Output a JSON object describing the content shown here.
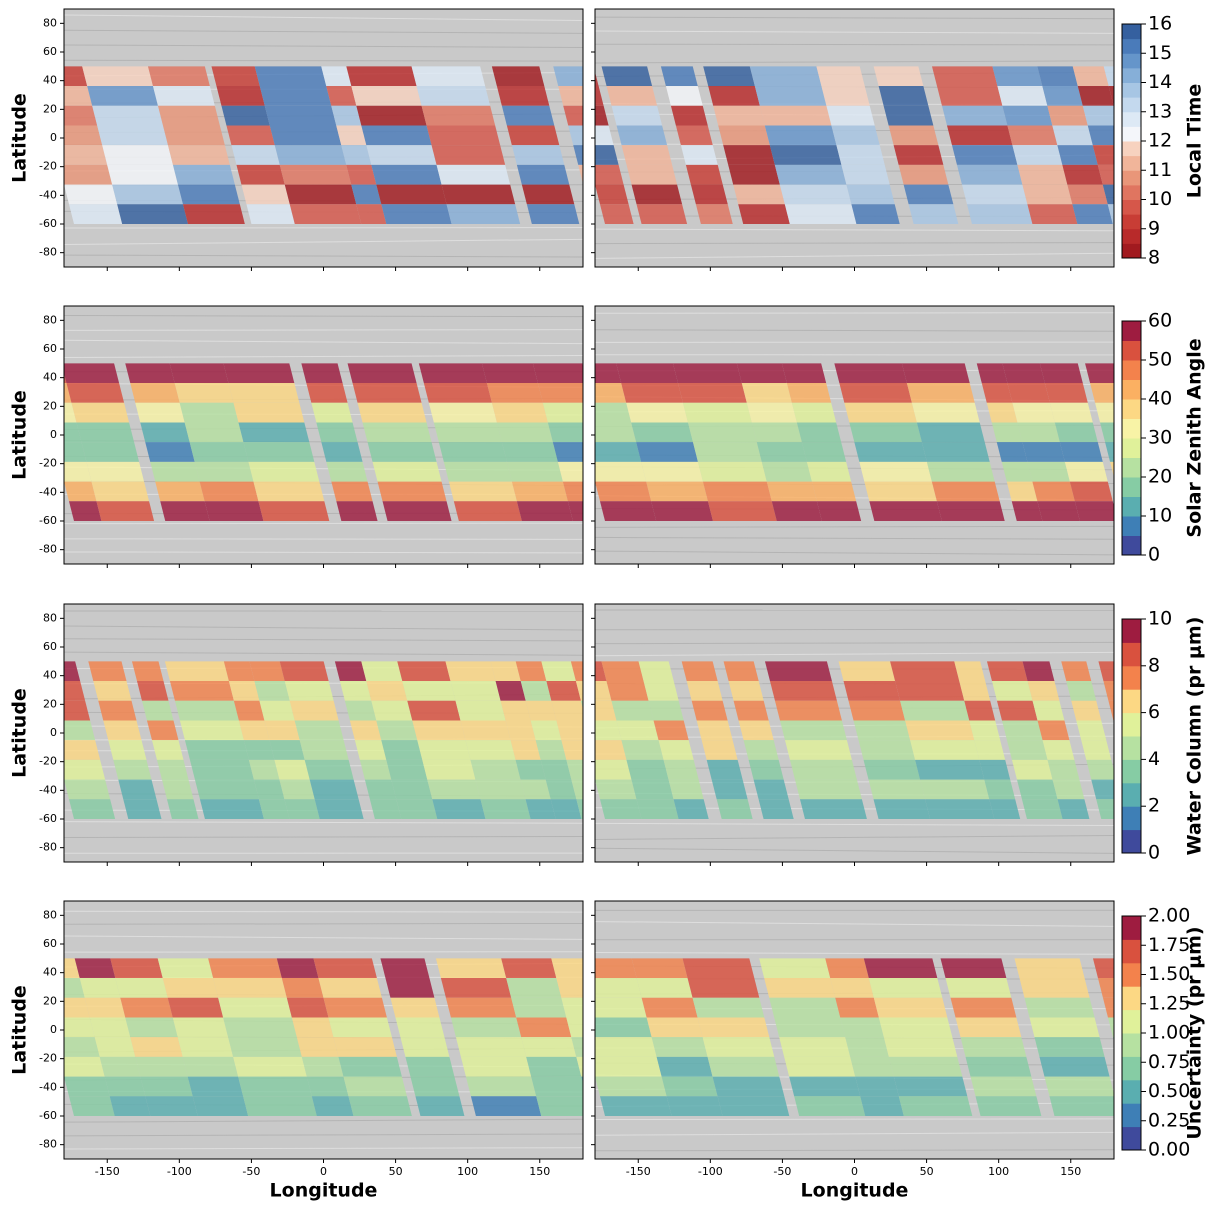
{
  "chart_data": [
    {
      "type": "heatmap",
      "ylabel": "Latitude",
      "xlim": [
        -180,
        180
      ],
      "ylim": [
        -90,
        90
      ],
      "xticks": [
        -150,
        -100,
        -50,
        0,
        50,
        100,
        150
      ],
      "yticks": [
        -80,
        -60,
        -40,
        -20,
        0,
        20,
        40,
        60,
        80
      ],
      "colorbar": {
        "label": "Local Time",
        "lim": [
          8,
          16
        ],
        "ticks": [
          8,
          9,
          10,
          11,
          12,
          13,
          14,
          15,
          16
        ],
        "colors": [
          "#a11a1f",
          "#b82a2a",
          "#c83d35",
          "#d6574a",
          "#e07560",
          "#e99679",
          "#f1b59a",
          "#f7d2bf",
          "#f4f6fa",
          "#dde9f5",
          "#c4d9ee",
          "#a7c6e4",
          "#86afd8",
          "#6595ca",
          "#4a7bba",
          "#35609f"
        ]
      }
    },
    {
      "type": "heatmap",
      "ylabel": "Latitude",
      "xlim": [
        -180,
        180
      ],
      "ylim": [
        -90,
        90
      ],
      "xticks": [
        -150,
        -100,
        -50,
        0,
        50,
        100,
        150
      ],
      "yticks": [
        -80,
        -60,
        -40,
        -20,
        0,
        20,
        40,
        60,
        80
      ],
      "colorbar": {
        "label": "Solar Zenith Angle",
        "lim": [
          0,
          60
        ],
        "ticks": [
          0,
          10,
          20,
          30,
          40,
          50,
          60
        ],
        "colors": [
          "#3f4a9c",
          "#3e7fb6",
          "#5aaeb0",
          "#86cca4",
          "#b6e1a1",
          "#e0f19a",
          "#f8f3a6",
          "#fcd884",
          "#fbb062",
          "#f3824c",
          "#d9513e",
          "#9e1c40"
        ]
      }
    },
    {
      "type": "heatmap",
      "ylabel": "Latitude",
      "xlim": [
        -180,
        180
      ],
      "ylim": [
        -90,
        90
      ],
      "xticks": [
        -150,
        -100,
        -50,
        0,
        50,
        100,
        150
      ],
      "yticks": [
        -80,
        -60,
        -40,
        -20,
        0,
        20,
        40,
        60,
        80
      ],
      "colorbar": {
        "label": "Water Column (pr μm)",
        "lim": [
          0,
          10
        ],
        "ticks": [
          0,
          2,
          4,
          6,
          8,
          10
        ],
        "colors": [
          "#3f4a9c",
          "#3e7fb6",
          "#5aaeb0",
          "#86cca4",
          "#b6e1a1",
          "#e0f19a",
          "#fcd884",
          "#f3824c",
          "#d9513e",
          "#9e1c40"
        ]
      }
    },
    {
      "type": "heatmap",
      "ylabel": "Latitude",
      "xlabel": "Longitude",
      "xlim": [
        -180,
        180
      ],
      "ylim": [
        -90,
        90
      ],
      "xticks": [
        -150,
        -100,
        -50,
        0,
        50,
        100,
        150
      ],
      "yticks": [
        -80,
        -60,
        -40,
        -20,
        0,
        20,
        40,
        60,
        80
      ],
      "colorbar": {
        "label": "Uncertainty (pr μm)",
        "lim": [
          0,
          2
        ],
        "ticks": [
          {
            "value": 0,
            "label": "0.00"
          },
          {
            "value": 0.25,
            "label": "0.25"
          },
          {
            "value": 0.5,
            "label": "0.50"
          },
          {
            "value": 0.75,
            "label": "0.75"
          },
          {
            "value": 1,
            "label": "1.00"
          },
          {
            "value": 1.25,
            "label": "1.25"
          },
          {
            "value": 1.5,
            "label": "1.50"
          },
          {
            "value": 1.75,
            "label": "1.75"
          },
          {
            "value": 2,
            "label": "2.00"
          }
        ],
        "colors": [
          "#3f4a9c",
          "#3e7fb6",
          "#5aaeb0",
          "#86cca4",
          "#b6e1a1",
          "#e0f19a",
          "#fcd884",
          "#f3824c",
          "#d9513e",
          "#9e1c40"
        ]
      }
    }
  ]
}
